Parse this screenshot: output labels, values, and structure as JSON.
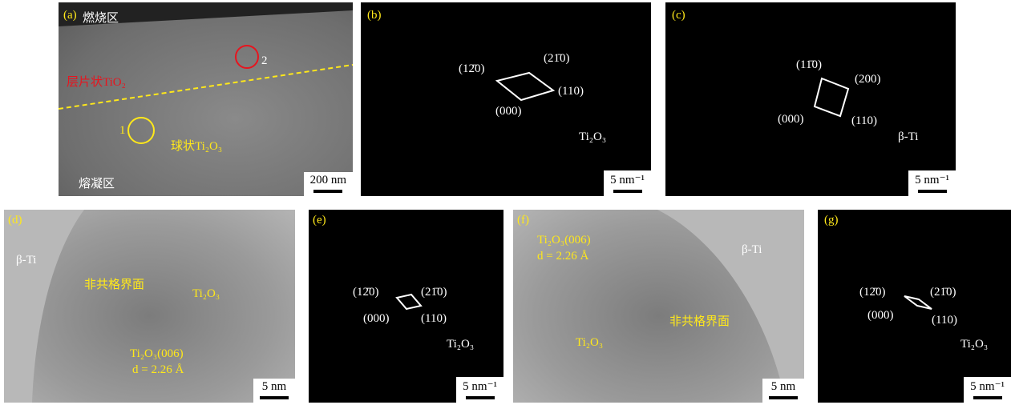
{
  "panels": [
    {
      "label": "(a)",
      "texts": [
        "燃烧区",
        "层片状TiO₂",
        "球状Ti₂O₃",
        "熔凝区",
        "1",
        "2"
      ],
      "scale": "200 nm"
    },
    {
      "label": "(b)",
      "texts": [
        "(12̄0)",
        "(21̄0)",
        "(110)",
        "(000)",
        "Ti₂O₃"
      ],
      "scale": "5 nm⁻¹"
    },
    {
      "label": "(c)",
      "texts": [
        "(11̄0)",
        "(200)",
        "(000)",
        "(110)",
        "β-Ti"
      ],
      "scale": "5 nm⁻¹"
    },
    {
      "label": "(d)",
      "texts": [
        "β-Ti",
        "非共格界面",
        "Ti₂O₃",
        "Ti₂O₃(006)",
        "d = 2.26 Å"
      ],
      "scale": "5 nm"
    },
    {
      "label": "(e)",
      "texts": [
        "(12̄0)",
        "(21̄0)",
        "(000)",
        "(110)",
        "Ti₂O₃"
      ],
      "scale": "5 nm⁻¹"
    },
    {
      "label": "(f)",
      "texts": [
        "Ti₂O₃(006)",
        "d = 2.26 Å",
        "β-Ti",
        "非共格界面",
        "Ti₂O₃"
      ],
      "scale": "5 nm"
    },
    {
      "label": "(g)",
      "texts": [
        "(12̄0)",
        "(21̄0)",
        "(000)",
        "(110)",
        "Ti₂O₃"
      ],
      "scale": "5 nm⁻¹"
    }
  ]
}
